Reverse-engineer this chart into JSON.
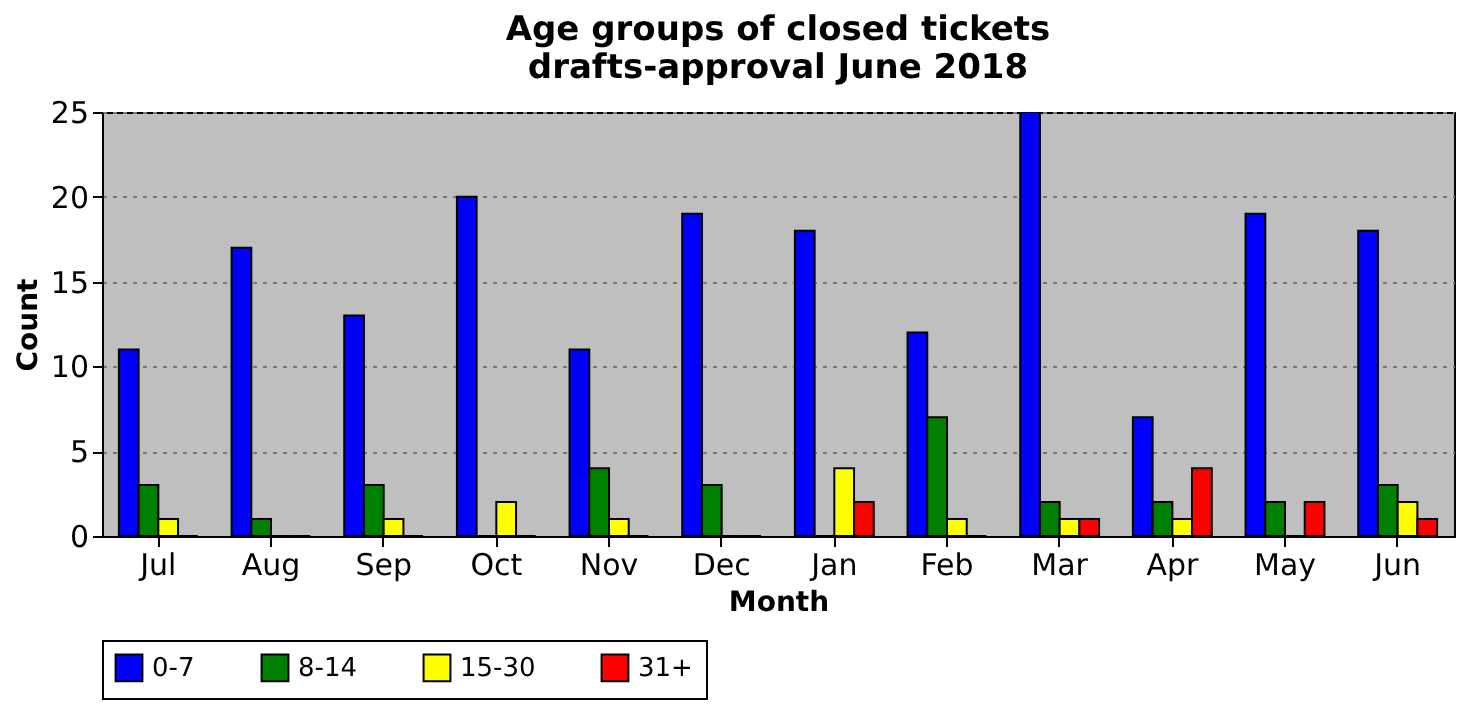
{
  "chart_data": {
    "type": "bar",
    "title": "Age groups of closed tickets\ndrafts-approval June 2018",
    "xlabel": "Month",
    "ylabel": "Count",
    "categories": [
      "Jul",
      "Aug",
      "Sep",
      "Oct",
      "Nov",
      "Dec",
      "Jan",
      "Feb",
      "Mar",
      "Apr",
      "May",
      "Jun"
    ],
    "series": [
      {
        "name": "0-7",
        "color": "#0000ff",
        "values": [
          11,
          17,
          13,
          20,
          11,
          19,
          18,
          12,
          25,
          7,
          19,
          18
        ]
      },
      {
        "name": "8-14",
        "color": "#008000",
        "values": [
          3,
          1,
          3,
          0,
          4,
          3,
          0,
          7,
          2,
          2,
          2,
          3
        ]
      },
      {
        "name": "15-30",
        "color": "#ffff00",
        "values": [
          1,
          0,
          1,
          2,
          1,
          0,
          4,
          1,
          1,
          1,
          0,
          2
        ]
      },
      {
        "name": "31+",
        "color": "#ff0000",
        "values": [
          0,
          0,
          0,
          0,
          0,
          0,
          2,
          0,
          1,
          4,
          2,
          1
        ]
      }
    ],
    "ylim": [
      0,
      25
    ],
    "yticks": [
      0,
      5,
      10,
      15,
      20,
      25
    ],
    "grid": "y",
    "legend": "bottom"
  }
}
